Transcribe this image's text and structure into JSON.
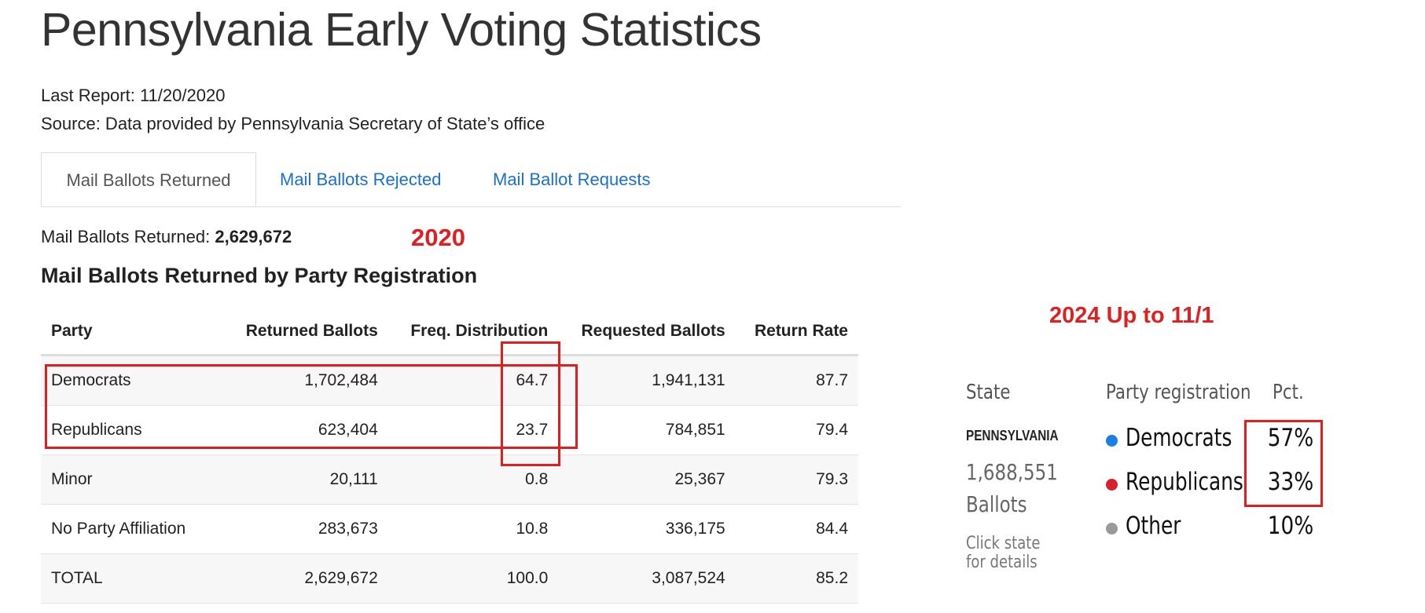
{
  "page": {
    "title": "Pennsylvania Early Voting Statistics",
    "last_report": "Last Report: 11/20/2020",
    "source": "Source: Data provided by Pennsylvania Secretary of State’s office"
  },
  "tabs": [
    {
      "label": "Mail Ballots Returned",
      "active": true
    },
    {
      "label": "Mail Ballots Rejected",
      "active": false
    },
    {
      "label": "Mail Ballot Requests",
      "active": false
    }
  ],
  "summary": {
    "label": "Mail Ballots Returned:",
    "value": "2,629,672"
  },
  "annotations": {
    "year_2020": "2020",
    "year_2024": "2024 Up to 11/1",
    "color": "#e02020"
  },
  "table": {
    "heading": "Mail Ballots Returned by Party Registration",
    "columns": [
      "Party",
      "Returned Ballots",
      "Freq. Distribution",
      "Requested Ballots",
      "Return Rate"
    ],
    "rows": [
      [
        "Democrats",
        "1,702,484",
        "64.7",
        "1,941,131",
        "87.7"
      ],
      [
        "Republicans",
        "623,404",
        "23.7",
        "784,851",
        "79.4"
      ],
      [
        "Minor",
        "20,111",
        "0.8",
        "25,367",
        "79.3"
      ],
      [
        "No Party Affiliation",
        "283,673",
        "10.8",
        "336,175",
        "84.4"
      ],
      [
        "TOTAL",
        "2,629,672",
        "100.0",
        "3,087,524",
        "85.2"
      ]
    ]
  },
  "widget_2024": {
    "col_state": "State",
    "col_party": "Party registration",
    "col_pct": "Pct.",
    "state_name": "PENNSYLVANIA",
    "ballots_count": "1,688,551",
    "ballots_word": "Ballots",
    "click_hint": "Click state for details",
    "legend": [
      {
        "label": "Democrats",
        "pct": "57%",
        "color": "#1a7fe0",
        "icon": "blue-dot-icon"
      },
      {
        "label": "Republicans",
        "pct": "33%",
        "color": "#d82030",
        "icon": "red-dot-icon"
      },
      {
        "label": "Other",
        "pct": "10%",
        "color": "#999999",
        "icon": "gray-dot-icon"
      }
    ]
  }
}
